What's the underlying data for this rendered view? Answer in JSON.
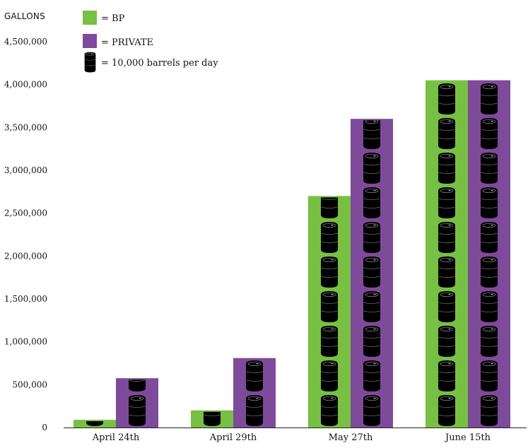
{
  "chart_data": {
    "type": "bar",
    "ylabel": "GALLONS",
    "ylim": [
      0,
      4500000
    ],
    "yticks": [
      0,
      500000,
      1000000,
      1500000,
      2000000,
      2500000,
      3000000,
      3500000,
      4000000,
      4500000
    ],
    "ytick_labels": [
      "0",
      "500,000",
      "1,000,000",
      "1,500,000",
      "2,000,000",
      "2,500,000",
      "3,000,000",
      "3,500,000",
      "4,000,000",
      "4,500,000"
    ],
    "categories": [
      "April 24th",
      "April 29th",
      "May 27th",
      "June 15th"
    ],
    "series": [
      {
        "name": "= BP",
        "color": "#77c043",
        "values": [
          90000,
          200000,
          2700000,
          4050000
        ]
      },
      {
        "name": "= PRIVATE",
        "color": "#7e4a9a",
        "values": [
          575000,
          810000,
          3600000,
          4050000
        ]
      }
    ],
    "barrel_icons": [
      [
        1,
        1,
        9,
        10
      ],
      [
        2,
        3,
        9,
        10
      ]
    ],
    "barrel_legend": "= 10,000 barrels per day",
    "barrel_icon": "oil-barrel-icon",
    "grid": false,
    "legend_position": "top-left"
  }
}
